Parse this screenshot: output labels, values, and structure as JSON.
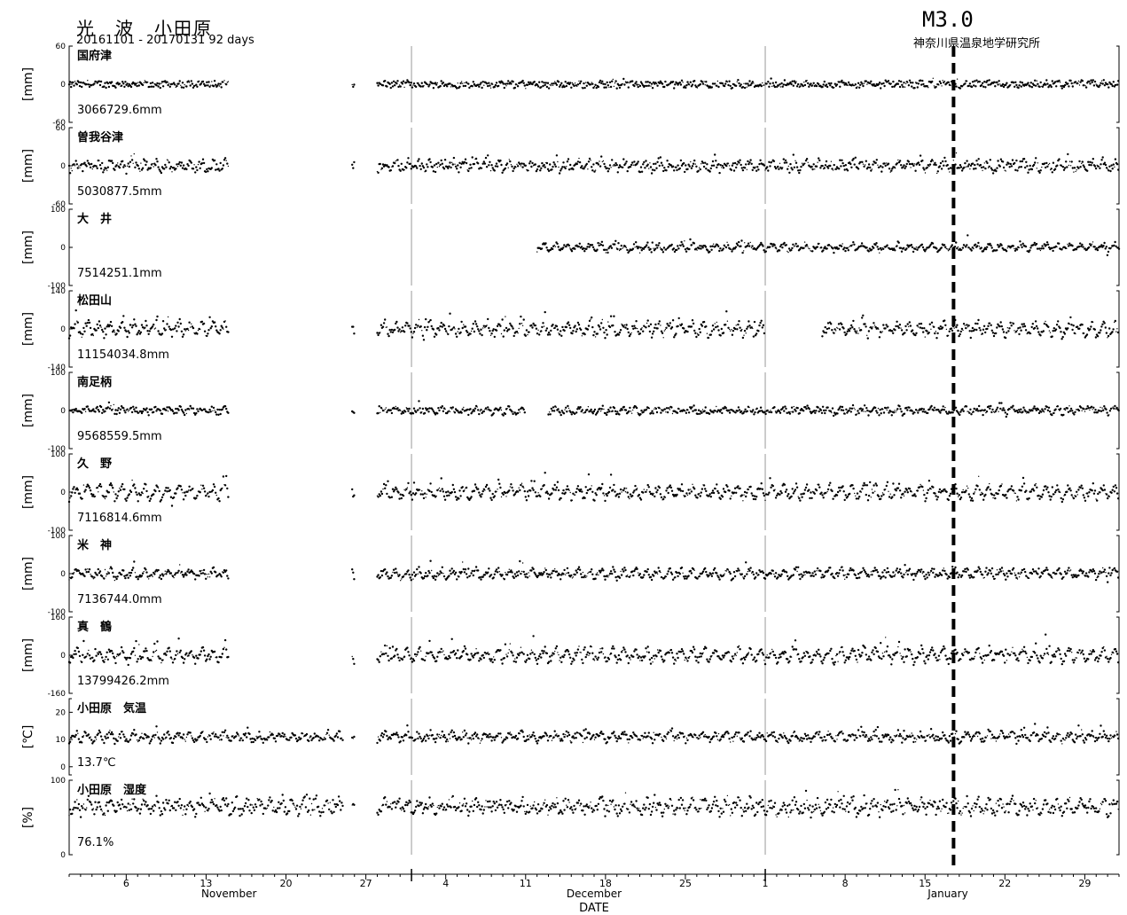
{
  "header": {
    "title": "光　波　小田原",
    "range": "20161101 - 20170131 92 days",
    "event_label": "M3.0",
    "organization": "神奈川県温泉地学研究所"
  },
  "chart_data": {
    "type": "scatter",
    "xlabel": "DATE",
    "x_range_days": [
      0,
      92
    ],
    "event_day": 77.5,
    "month_boundary_days": [
      30,
      61
    ],
    "month_labels": [
      {
        "label": "November",
        "day": 14
      },
      {
        "label": "December",
        "day": 46
      },
      {
        "label": "January",
        "day": 77
      }
    ],
    "day_ticks": [
      {
        "label": "6",
        "day": 5
      },
      {
        "label": "13",
        "day": 12
      },
      {
        "label": "20",
        "day": 19
      },
      {
        "label": "27",
        "day": 26
      },
      {
        "label": "4",
        "day": 33
      },
      {
        "label": "11",
        "day": 40
      },
      {
        "label": "18",
        "day": 47
      },
      {
        "label": "25",
        "day": 54
      },
      {
        "label": "1",
        "day": 61
      },
      {
        "label": "8",
        "day": 68
      },
      {
        "label": "15",
        "day": 75
      },
      {
        "label": "22",
        "day": 82
      },
      {
        "label": "29",
        "day": 89
      }
    ],
    "panels": [
      {
        "name": "国府津",
        "ylabel": "[mm]",
        "ymin": -60,
        "ymax": 60,
        "ticks": [
          "60",
          "0",
          "-60"
        ],
        "base": "3066729.6mm",
        "segments": [
          [
            0,
            14
          ],
          [
            24.8,
            25
          ],
          [
            27,
            92
          ]
        ],
        "base_level": 0,
        "noise": 5,
        "daily": 4
      },
      {
        "name": "曽我谷津",
        "ylabel": "[mm]",
        "ymin": -60,
        "ymax": 60,
        "ticks": [
          "60",
          "0",
          "-60"
        ],
        "base": "5030877.5mm",
        "segments": [
          [
            0,
            14
          ],
          [
            24.8,
            25
          ],
          [
            27,
            92
          ]
        ],
        "base_level": 0,
        "noise": 7,
        "daily": 12
      },
      {
        "name": "大　井",
        "ylabel": "[mm]",
        "ymin": -100,
        "ymax": 100,
        "ticks": [
          "100",
          "0",
          "-100"
        ],
        "base": "7514251.1mm",
        "segments": [
          [
            41,
            92
          ]
        ],
        "base_level": 0,
        "noise": 6,
        "daily": 18
      },
      {
        "name": "松田山",
        "ylabel": "[mm]",
        "ymin": -140,
        "ymax": 140,
        "ticks": [
          "140",
          "0",
          "-140"
        ],
        "base": "11154034.8mm",
        "segments": [
          [
            0,
            14
          ],
          [
            24.8,
            25
          ],
          [
            27,
            61
          ],
          [
            66,
            92
          ]
        ],
        "base_level": 0,
        "noise": 15,
        "daily": 45
      },
      {
        "name": "南足柄",
        "ylabel": "[mm]",
        "ymin": -100,
        "ymax": 100,
        "ticks": [
          "100",
          "0",
          "-100"
        ],
        "base": "9568559.5mm",
        "segments": [
          [
            0,
            14
          ],
          [
            24.8,
            25
          ],
          [
            27,
            40
          ],
          [
            42,
            92
          ]
        ],
        "base_level": 0,
        "noise": 8,
        "daily": 12
      },
      {
        "name": "久　野",
        "ylabel": "[mm]",
        "ymin": -100,
        "ymax": 100,
        "ticks": [
          "100",
          "0",
          "-100"
        ],
        "base": "7116814.6mm",
        "segments": [
          [
            0,
            14
          ],
          [
            24.8,
            25
          ],
          [
            27,
            92
          ]
        ],
        "base_level": 0,
        "noise": 10,
        "daily": 32
      },
      {
        "name": "米　神",
        "ylabel": "[mm]",
        "ymin": -100,
        "ymax": 100,
        "ticks": [
          "100",
          "0",
          "-100"
        ],
        "base": "7136744.0mm",
        "segments": [
          [
            0,
            14
          ],
          [
            24.8,
            25
          ],
          [
            27,
            92
          ]
        ],
        "base_level": 0,
        "noise": 8,
        "daily": 22
      },
      {
        "name": "真　鶴",
        "ylabel": "[mm]",
        "ymin": -160,
        "ymax": 160,
        "ticks": [
          "160",
          "0",
          "-160"
        ],
        "base": "13799426.2mm",
        "segments": [
          [
            0,
            14
          ],
          [
            24.8,
            25
          ],
          [
            27,
            92
          ]
        ],
        "base_level": 0,
        "noise": 15,
        "daily": 55
      },
      {
        "name": "小田原　気温",
        "ylabel": "[℃]",
        "ymin": -3,
        "ymax": 25,
        "ticks": [
          "20",
          "10",
          "0"
        ],
        "tick_values": [
          20,
          10,
          0
        ],
        "base": "13.7℃",
        "segments": [
          [
            0,
            24
          ],
          [
            24.8,
            25
          ],
          [
            27,
            92
          ]
        ],
        "base_level": 11,
        "noise": 1.2,
        "daily": 3
      },
      {
        "name": "小田原　湿度",
        "ylabel": "[%]",
        "ymin": 0,
        "ymax": 100,
        "ticks": [
          "100",
          "0"
        ],
        "tick_values": [
          100,
          0
        ],
        "base": "76.1%",
        "segments": [
          [
            0,
            24
          ],
          [
            24.8,
            25
          ],
          [
            27,
            92
          ]
        ],
        "base_level": 65,
        "noise": 8,
        "daily": 15
      }
    ]
  }
}
